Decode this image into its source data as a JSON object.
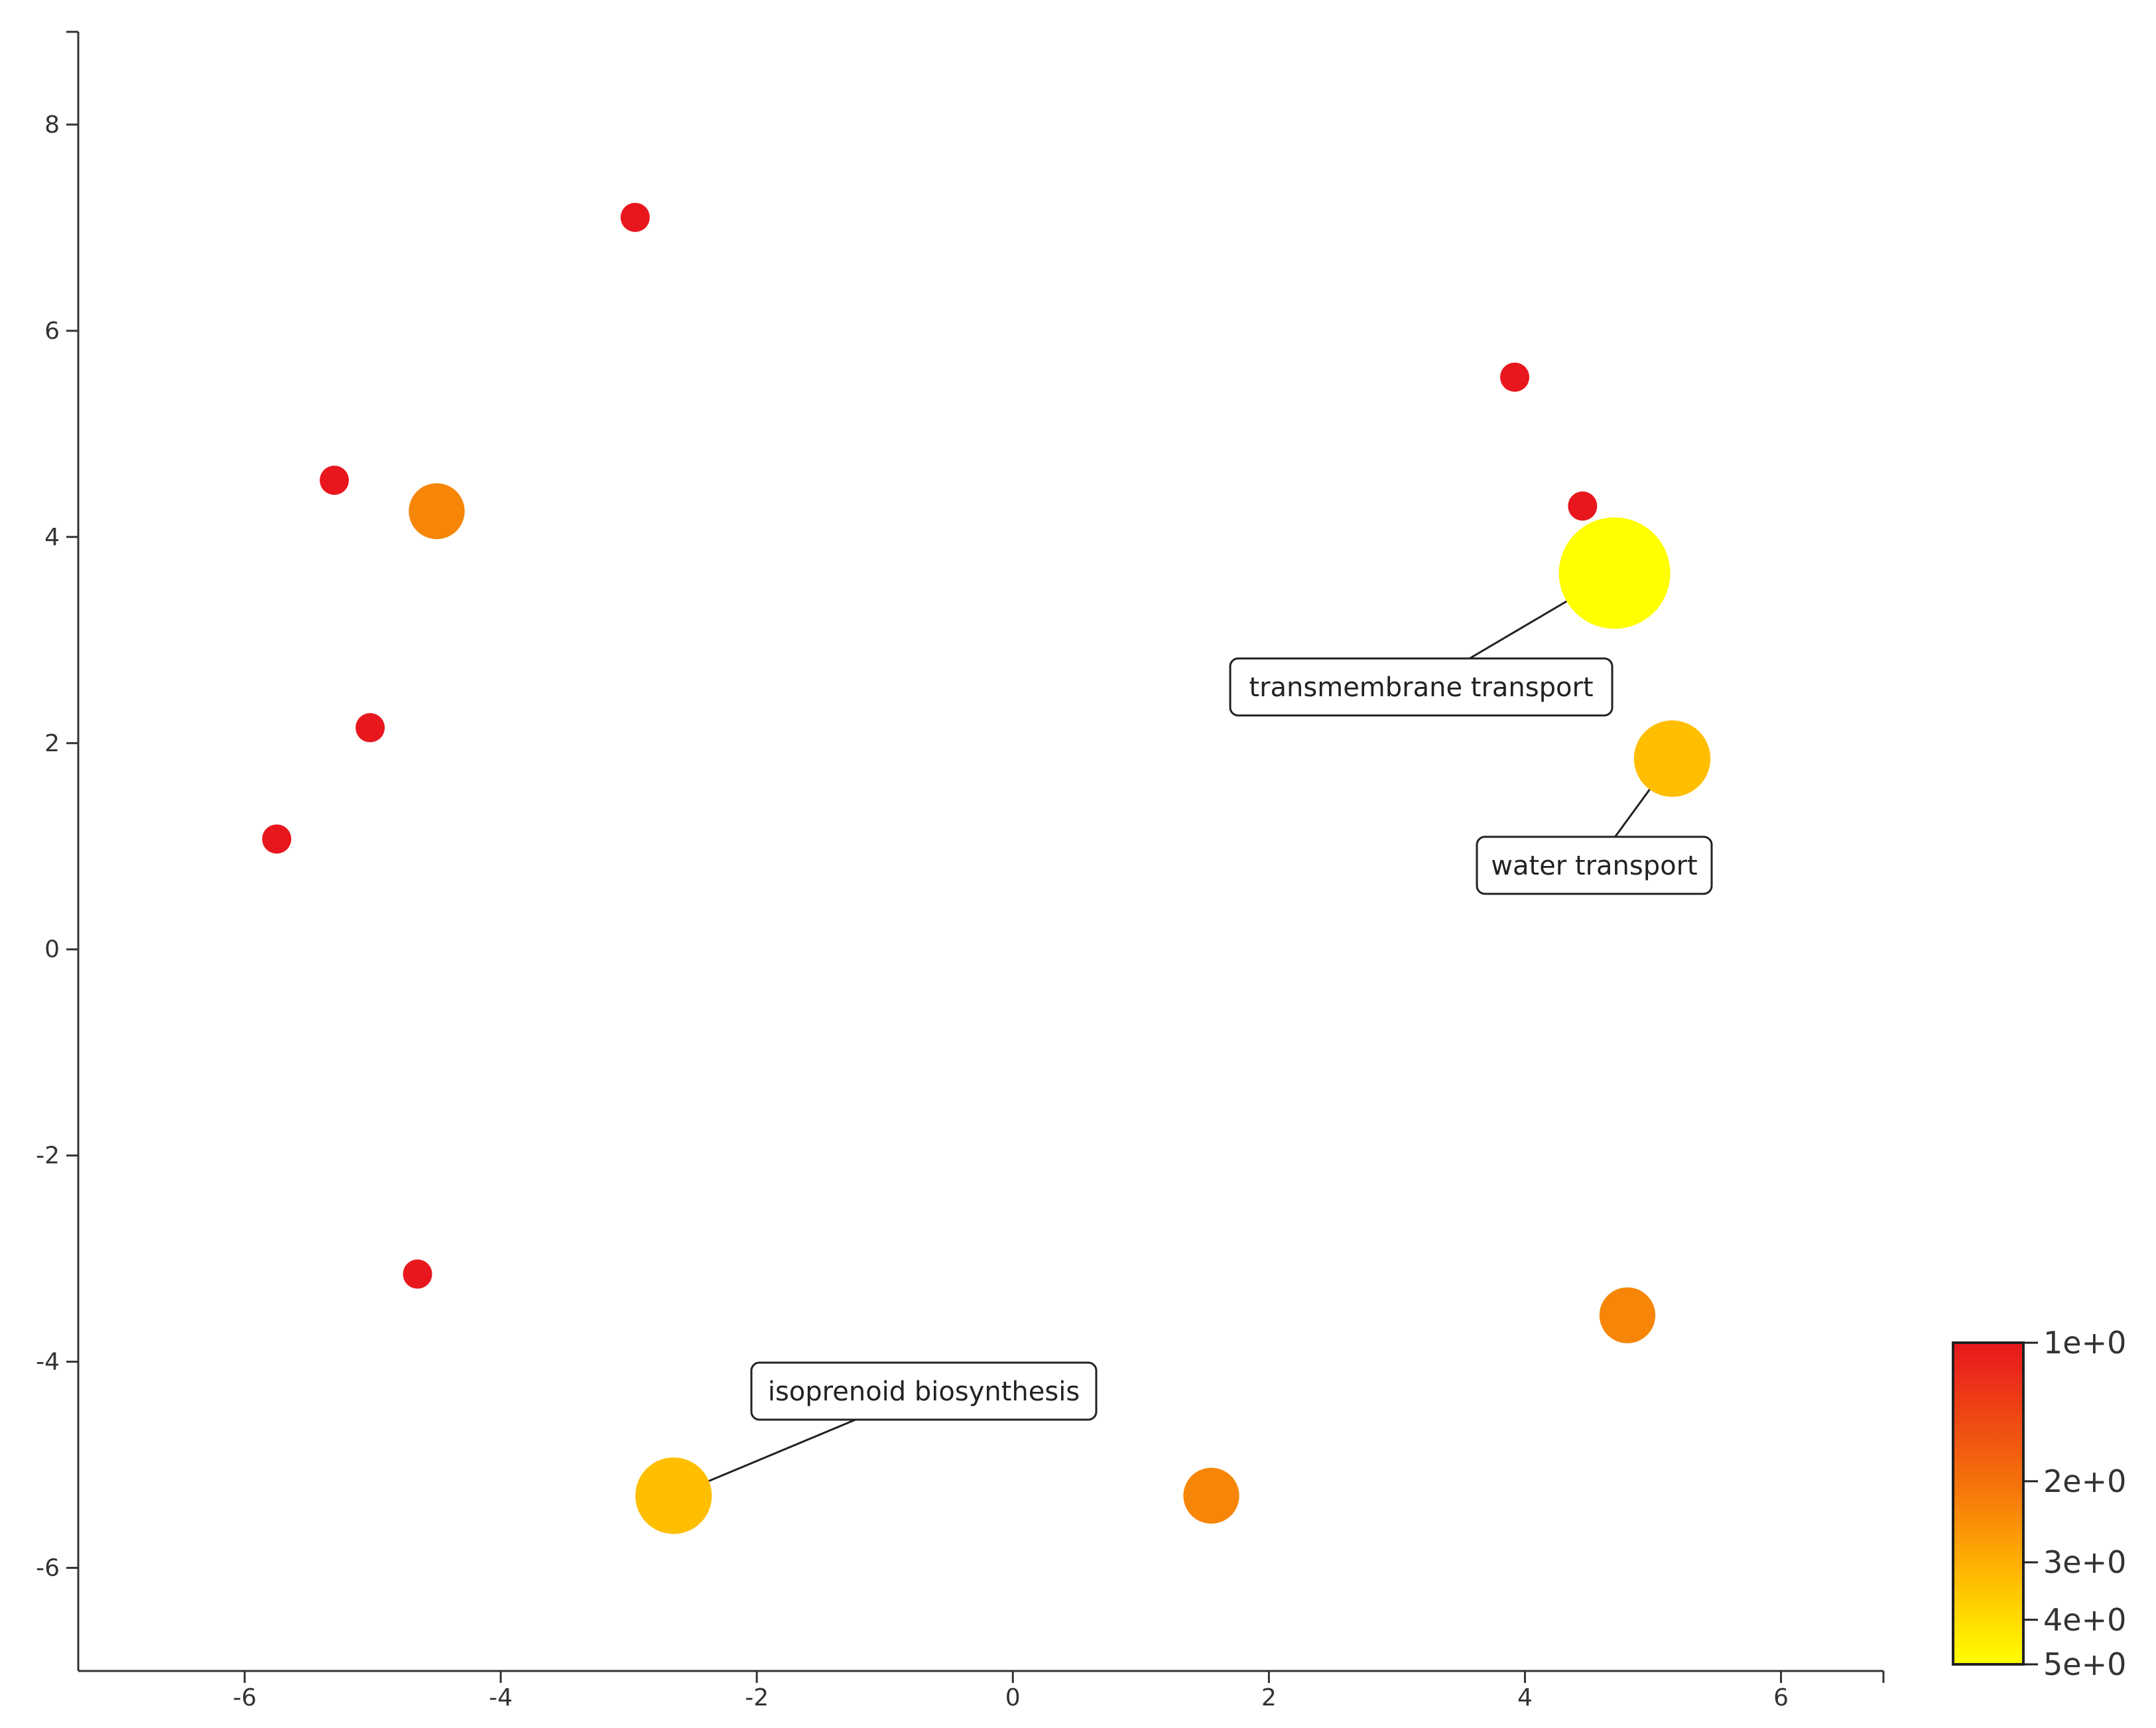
{
  "chart_data": {
    "type": "scatter",
    "title": "",
    "xlabel": "",
    "ylabel": "",
    "xlim": [
      -7.3,
      6.8
    ],
    "ylim": [
      -7.0,
      8.9
    ],
    "x_ticks": [
      -6,
      -4,
      -2,
      0,
      2,
      4,
      6
    ],
    "y_ticks": [
      8,
      6,
      4,
      2,
      0,
      -2,
      -4,
      -6
    ],
    "x_tick_labels": [
      "-6",
      "-4",
      "-2",
      "0",
      "2",
      "4",
      "6"
    ],
    "y_tick_labels": [
      "8",
      "6",
      "4",
      "2",
      "0",
      "-2",
      "-4",
      "-6"
    ],
    "grid": false,
    "points": [
      {
        "x": -2.95,
        "y": 7.1,
        "value": 1.0
      },
      {
        "x": 3.92,
        "y": 5.55,
        "value": 1.0
      },
      {
        "x": -5.3,
        "y": 4.55,
        "value": 1.0
      },
      {
        "x": -4.5,
        "y": 4.25,
        "value": 2.3
      },
      {
        "x": 4.45,
        "y": 4.3,
        "value": 1.0
      },
      {
        "x": 4.7,
        "y": 3.65,
        "value": 5.0
      },
      {
        "x": -5.02,
        "y": 2.15,
        "value": 1.0
      },
      {
        "x": 5.15,
        "y": 1.85,
        "value": 3.3
      },
      {
        "x": -5.75,
        "y": 1.07,
        "value": 1.0
      },
      {
        "x": -4.65,
        "y": -3.15,
        "value": 1.0
      },
      {
        "x": 4.8,
        "y": -3.55,
        "value": 2.3
      },
      {
        "x": -2.65,
        "y": -5.3,
        "value": 3.3
      },
      {
        "x": 1.55,
        "y": -5.3,
        "value": 2.3
      }
    ],
    "annotations": [
      {
        "label": "transmembrane transport",
        "point_index": 5
      },
      {
        "label": "water transport",
        "point_index": 7
      },
      {
        "label": "isoprenoid biosynthesis",
        "point_index": 11
      }
    ],
    "colorbar": {
      "tick_labels": [
        "1e+0",
        "2e+0",
        "3e+0",
        "4e+0",
        "5e+0"
      ],
      "tick_values": [
        1,
        2,
        3,
        4,
        5
      ],
      "scale": "log",
      "colors": [
        "#e8171e",
        "#f5750a",
        "#ffc000",
        "#ffff00"
      ],
      "placement": "bottom-right"
    }
  }
}
